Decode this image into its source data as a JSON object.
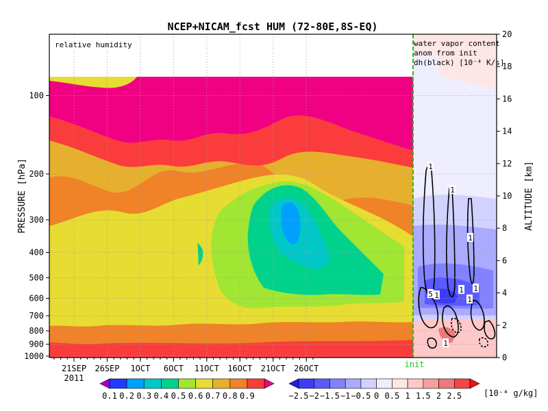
{
  "chart_data": {
    "type": "heatmap",
    "title": "NCEP+NICAM_fcst HUM (72-80E,8S-EQ)",
    "ylabel_left": "PRESSURE [hPa]",
    "ylabel_right": "ALTITUDE [km]",
    "pressure_ticks": [
      100,
      200,
      300,
      400,
      500,
      600,
      700,
      800,
      900,
      1000
    ],
    "altitude_ticks": [
      0,
      2,
      4,
      6,
      8,
      10,
      12,
      14,
      16,
      18,
      20
    ],
    "x_ticks": [
      "21SEP",
      "26SEP",
      "1OCT",
      "6OCT",
      "11OCT",
      "16OCT",
      "21OCT",
      "26OCT"
    ],
    "x_year": "2011",
    "init_label": "init",
    "panels": {
      "left": {
        "label": "relative humidity"
      },
      "right": {
        "label_lines": [
          "water vapor content",
          "anom from init",
          "dh(black) [10⁻⁴ K/s]"
        ]
      }
    },
    "contour_labels": [
      "1",
      "1",
      "1",
      "5",
      "1",
      "1",
      "1",
      "1",
      "1"
    ],
    "colorbar_rh": {
      "levels": [
        "0.1",
        "0.2",
        "0.3",
        "0.4",
        "0.5",
        "0.6",
        "0.7",
        "0.8",
        "0.9"
      ],
      "colors": [
        "#a000c8",
        "#1e3cff",
        "#00a0ff",
        "#00c8c8",
        "#00d28c",
        "#a0e632",
        "#e6dc32",
        "#e6af2d",
        "#f08228",
        "#fa3c3c",
        "#f00082"
      ]
    },
    "colorbar_anom": {
      "levels": [
        "−2.5",
        "−2",
        "−1.5",
        "−1",
        "−0.5",
        "0",
        "0.5",
        "1",
        "1.5",
        "2",
        "2.5"
      ],
      "unit": "[10⁻⁴ g/kg]",
      "colors": [
        "#1e1ef0",
        "#3c3cf5",
        "#5a5aff",
        "#8282ff",
        "#aaaaff",
        "#d2d2ff",
        "#eeeeff",
        "#ffe6e6",
        "#ffc8c8",
        "#f5a0a0",
        "#f07878",
        "#f04646",
        "#e61414"
      ]
    },
    "accent_init_line": "#20c020"
  }
}
